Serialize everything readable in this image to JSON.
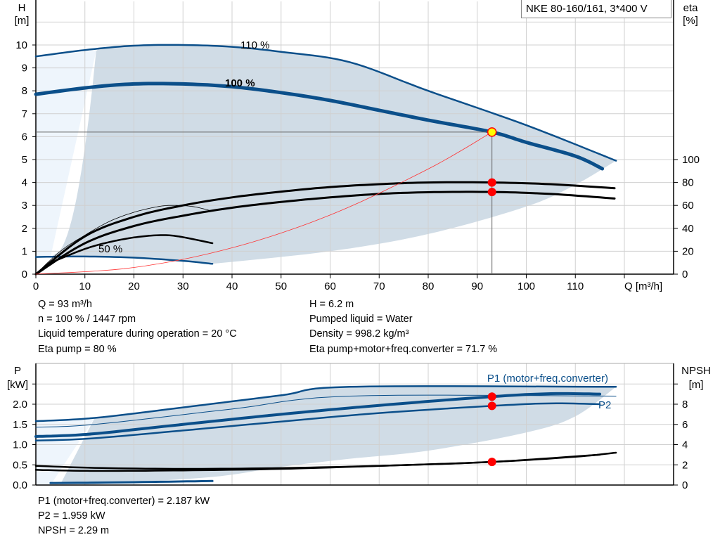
{
  "model": "NKE 80-160/161, 3*400 V",
  "colors": {
    "curve": "#0b4f8a",
    "area": "#d0dce6",
    "area_light": "#eef5fc",
    "eta": "#000000",
    "system": "#ff3333",
    "point": "#ff0000",
    "duty": "#ffff00"
  },
  "duty_info": {
    "left": [
      "Q = 93 m³/h",
      "n = 100 % / 1447 rpm",
      "Liquid temperature during operation = 20 °C",
      "Eta pump = 80 %"
    ],
    "right": [
      "H = 6.2 m",
      "Pumped liquid = Water",
      "Density = 998.2 kg/m³",
      "Eta pump+motor+freq.converter = 71.7 %"
    ],
    "bottom": [
      "P1 (motor+freq.converter) = 2.187 kW",
      "P2 = 1.959 kW",
      "NPSH = 2.29 m"
    ]
  },
  "chart_data": [
    {
      "type": "line",
      "xlabel": "Q [m³/h]",
      "ylabel": "H\n[m]",
      "y2label": "eta\n[%]",
      "xlim": [
        0,
        130
      ],
      "ylim": [
        0,
        11
      ],
      "y2lim": [
        0,
        100
      ],
      "grid": true,
      "xticks": [
        0,
        10,
        20,
        30,
        40,
        50,
        60,
        70,
        80,
        90,
        100,
        110
      ],
      "yticks": [
        0,
        1,
        2,
        3,
        4,
        5,
        6,
        7,
        8,
        9,
        10
      ],
      "y2ticks": [
        0,
        20,
        40,
        60,
        80,
        100
      ],
      "curve_labels": [
        "110 %",
        "100 %",
        "50 %"
      ],
      "series": [
        {
          "name": "110 %",
          "axis": "H",
          "values": [
            [
              0,
              9.5
            ],
            [
              10,
              9.78
            ],
            [
              20,
              9.97
            ],
            [
              30,
              10.0
            ],
            [
              40,
              9.92
            ],
            [
              50,
              9.7
            ],
            [
              64,
              9.25
            ],
            [
              80,
              8.0
            ],
            [
              100,
              6.5
            ],
            [
              118.3,
              4.95
            ]
          ]
        },
        {
          "name": "100 %",
          "axis": "H",
          "values": [
            [
              0,
              7.85
            ],
            [
              11,
              8.15
            ],
            [
              20,
              8.3
            ],
            [
              30,
              8.3
            ],
            [
              40,
              8.18
            ],
            [
              50,
              7.92
            ],
            [
              60,
              7.58
            ],
            [
              70,
              7.15
            ],
            [
              80,
              6.72
            ],
            [
              93,
              6.2
            ],
            [
              100,
              5.75
            ],
            [
              110,
              5.15
            ],
            [
              115.5,
              4.6
            ]
          ]
        },
        {
          "name": "50 %",
          "axis": "H",
          "values": [
            [
              0,
              0.75
            ],
            [
              10,
              0.77
            ],
            [
              20,
              0.72
            ],
            [
              30,
              0.58
            ],
            [
              36,
              0.45
            ]
          ]
        },
        {
          "axis": "eta",
          "values": [
            [
              0,
              0
            ],
            [
              10,
              33
            ],
            [
              20,
              50
            ],
            [
              30,
              60
            ],
            [
              40,
              67
            ],
            [
              50,
              72
            ],
            [
              60,
              76
            ],
            [
              70,
              78.5
            ],
            [
              80,
              80
            ],
            [
              93,
              80
            ],
            [
              105,
              78.5
            ],
            [
              118,
              75
            ]
          ]
        },
        {
          "axis": "eta",
          "values": [
            [
              0,
              0
            ],
            [
              10,
              27
            ],
            [
              20,
              42
            ],
            [
              30,
              51
            ],
            [
              40,
              58
            ],
            [
              50,
              63
            ],
            [
              60,
              67
            ],
            [
              70,
              70
            ],
            [
              80,
              71.5
            ],
            [
              93,
              71.7
            ],
            [
              105,
              70
            ],
            [
              118,
              66
            ]
          ]
        },
        {
          "axis": "eta",
          "values": [
            [
              0,
              0
            ],
            [
              5,
              20
            ],
            [
              10,
              34
            ],
            [
              15,
              46
            ],
            [
              20,
              54
            ],
            [
              25,
              59
            ],
            [
              28,
              60
            ],
            [
              32,
              59
            ],
            [
              36,
              55
            ]
          ]
        },
        {
          "axis": "eta",
          "values": [
            [
              3,
              10
            ],
            [
              10,
              22
            ],
            [
              15,
              28
            ],
            [
              20,
              32
            ],
            [
              25,
              34
            ],
            [
              29,
              33
            ],
            [
              36,
              27
            ]
          ]
        },
        {
          "axis": "H",
          "values": [
            [
              0,
              0
            ],
            [
              20,
              0.29
            ],
            [
              40,
              1.15
            ],
            [
              60,
              2.58
            ],
            [
              80,
              4.59
            ],
            [
              93,
              6.2
            ]
          ]
        }
      ],
      "duty_point": {
        "Q": 93,
        "H": 6.2,
        "eta_pump": 80,
        "eta_total": 71.7
      }
    },
    {
      "type": "line",
      "xlabel": "",
      "ylabel": "P\n[kW]",
      "y2label": "NPSH\n[m]",
      "xlim": [
        0,
        130
      ],
      "ylim": [
        0,
        2.5
      ],
      "y2lim": [
        0,
        10
      ],
      "grid": true,
      "yticks": [
        "0.0",
        "0.5",
        "1.0",
        "1.5",
        "2.0"
      ],
      "y2ticks": [
        0,
        2,
        4,
        6,
        8
      ],
      "curve_labels": [
        "P1 (motor+freq.converter)",
        "P2"
      ],
      "series": [
        {
          "axis": "P",
          "values": [
            [
              0,
              1.58
            ],
            [
              12,
              1.66
            ],
            [
              30,
              1.92
            ],
            [
              50,
              2.22
            ],
            [
              64,
              2.43
            ],
            [
              118.3,
              2.43
            ]
          ]
        },
        {
          "axis": "P",
          "values": [
            [
              0,
              1.43
            ],
            [
              12,
              1.5
            ],
            [
              40,
              1.88
            ],
            [
              64,
              2.2
            ],
            [
              118.3,
              2.2
            ]
          ]
        },
        {
          "name": "P1 (motor+freq.converter)",
          "axis": "P",
          "values": [
            [
              0,
              1.2
            ],
            [
              11,
              1.26
            ],
            [
              30,
              1.5
            ],
            [
              50,
              1.75
            ],
            [
              70,
              1.97
            ],
            [
              93,
              2.187
            ],
            [
              105,
              2.26
            ],
            [
              115,
              2.25
            ]
          ]
        },
        {
          "name": "P2",
          "axis": "P",
          "values": [
            [
              0,
              1.1
            ],
            [
              11,
              1.15
            ],
            [
              30,
              1.35
            ],
            [
              50,
              1.57
            ],
            [
              70,
              1.78
            ],
            [
              93,
              1.959
            ],
            [
              105,
              2.02
            ],
            [
              115,
              2.0
            ]
          ]
        },
        {
          "axis": "P",
          "values": [
            [
              3,
              0.05
            ],
            [
              20,
              0.07
            ],
            [
              36,
              0.1
            ]
          ]
        },
        {
          "axis": "NPSH",
          "values": [
            [
              0,
              1.9
            ],
            [
              12,
              1.7
            ],
            [
              30,
              1.6
            ],
            [
              50,
              1.68
            ],
            [
              70,
              1.9
            ],
            [
              93,
              2.29
            ],
            [
              110,
              2.8
            ],
            [
              118.3,
              3.2
            ]
          ]
        },
        {
          "axis": "NPSH",
          "values": [
            [
              0,
              1.5
            ],
            [
              12,
              1.4
            ],
            [
              30,
              1.45
            ],
            [
              50,
              1.6
            ],
            [
              70,
              1.9
            ],
            [
              93,
              2.29
            ],
            [
              115,
              3.0
            ]
          ]
        }
      ],
      "duty_point": {
        "P1": 2.187,
        "P2": 1.959,
        "NPSH": 2.29
      }
    }
  ]
}
